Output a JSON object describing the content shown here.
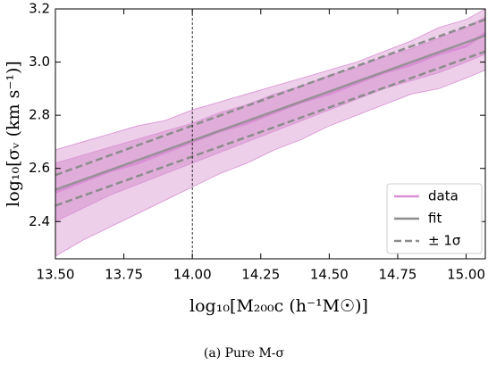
{
  "chart_data": {
    "type": "line",
    "xlabel": "log₁₀[M₂₀₀c (h⁻¹M☉)]",
    "ylabel": "log₁₀[σᵥ (km s⁻¹)]",
    "caption": "(a) Pure M-σ",
    "x": [
      13.5,
      13.6,
      13.7,
      13.8,
      13.9,
      14.0,
      14.1,
      14.2,
      14.3,
      14.4,
      14.5,
      14.6,
      14.7,
      14.8,
      14.9,
      15.0,
      15.07
    ],
    "series": [
      {
        "name": "data",
        "color": "#d98fd4",
        "values": [
          2.51,
          2.55,
          2.59,
          2.62,
          2.66,
          2.7,
          2.74,
          2.77,
          2.81,
          2.85,
          2.88,
          2.92,
          2.96,
          2.99,
          3.03,
          3.06,
          3.11
        ]
      },
      {
        "name": "fit",
        "color": "#8c8c8c",
        "x": [
          13.5,
          15.07
        ],
        "values": [
          2.52,
          3.1
        ]
      },
      {
        "name": "± 1σ",
        "color": "#8c8c8c",
        "x": [
          13.5,
          15.07
        ],
        "upper": [
          2.575,
          3.16
        ],
        "lower": [
          2.46,
          3.04
        ]
      }
    ],
    "bands": [
      {
        "color": "#e9c3e5",
        "lower": [
          2.27,
          2.33,
          2.38,
          2.43,
          2.48,
          2.53,
          2.58,
          2.62,
          2.67,
          2.71,
          2.76,
          2.8,
          2.84,
          2.88,
          2.9,
          2.94,
          2.97
        ],
        "upper": [
          2.67,
          2.7,
          2.73,
          2.76,
          2.78,
          2.82,
          2.85,
          2.88,
          2.91,
          2.94,
          2.97,
          3.0,
          3.04,
          3.08,
          3.13,
          3.16,
          3.2
        ]
      },
      {
        "color": "#dca4d7",
        "lower": [
          2.4,
          2.45,
          2.5,
          2.54,
          2.58,
          2.62,
          2.66,
          2.7,
          2.74,
          2.78,
          2.82,
          2.86,
          2.9,
          2.93,
          2.96,
          3.0,
          3.03
        ],
        "upper": [
          2.62,
          2.65,
          2.68,
          2.71,
          2.74,
          2.77,
          2.81,
          2.84,
          2.88,
          2.91,
          2.95,
          2.98,
          3.02,
          3.05,
          3.09,
          3.13,
          3.17
        ]
      }
    ],
    "vline": 14.0,
    "xlim": [
      13.5,
      15.07
    ],
    "ylim": [
      2.26,
      3.2
    ],
    "xticks": [
      {
        "value": 13.5,
        "label": "13.50"
      },
      {
        "value": 13.75,
        "label": "13.75"
      },
      {
        "value": 14.0,
        "label": "14.00"
      },
      {
        "value": 14.25,
        "label": "14.25"
      },
      {
        "value": 14.5,
        "label": "14.50"
      },
      {
        "value": 14.75,
        "label": "14.75"
      },
      {
        "value": 15.0,
        "label": "15.00"
      }
    ],
    "yticks": [
      2.4,
      2.6,
      2.8,
      {
        "value": 3.0,
        "label": "3.0"
      },
      3.2
    ],
    "legend": "lower right"
  }
}
